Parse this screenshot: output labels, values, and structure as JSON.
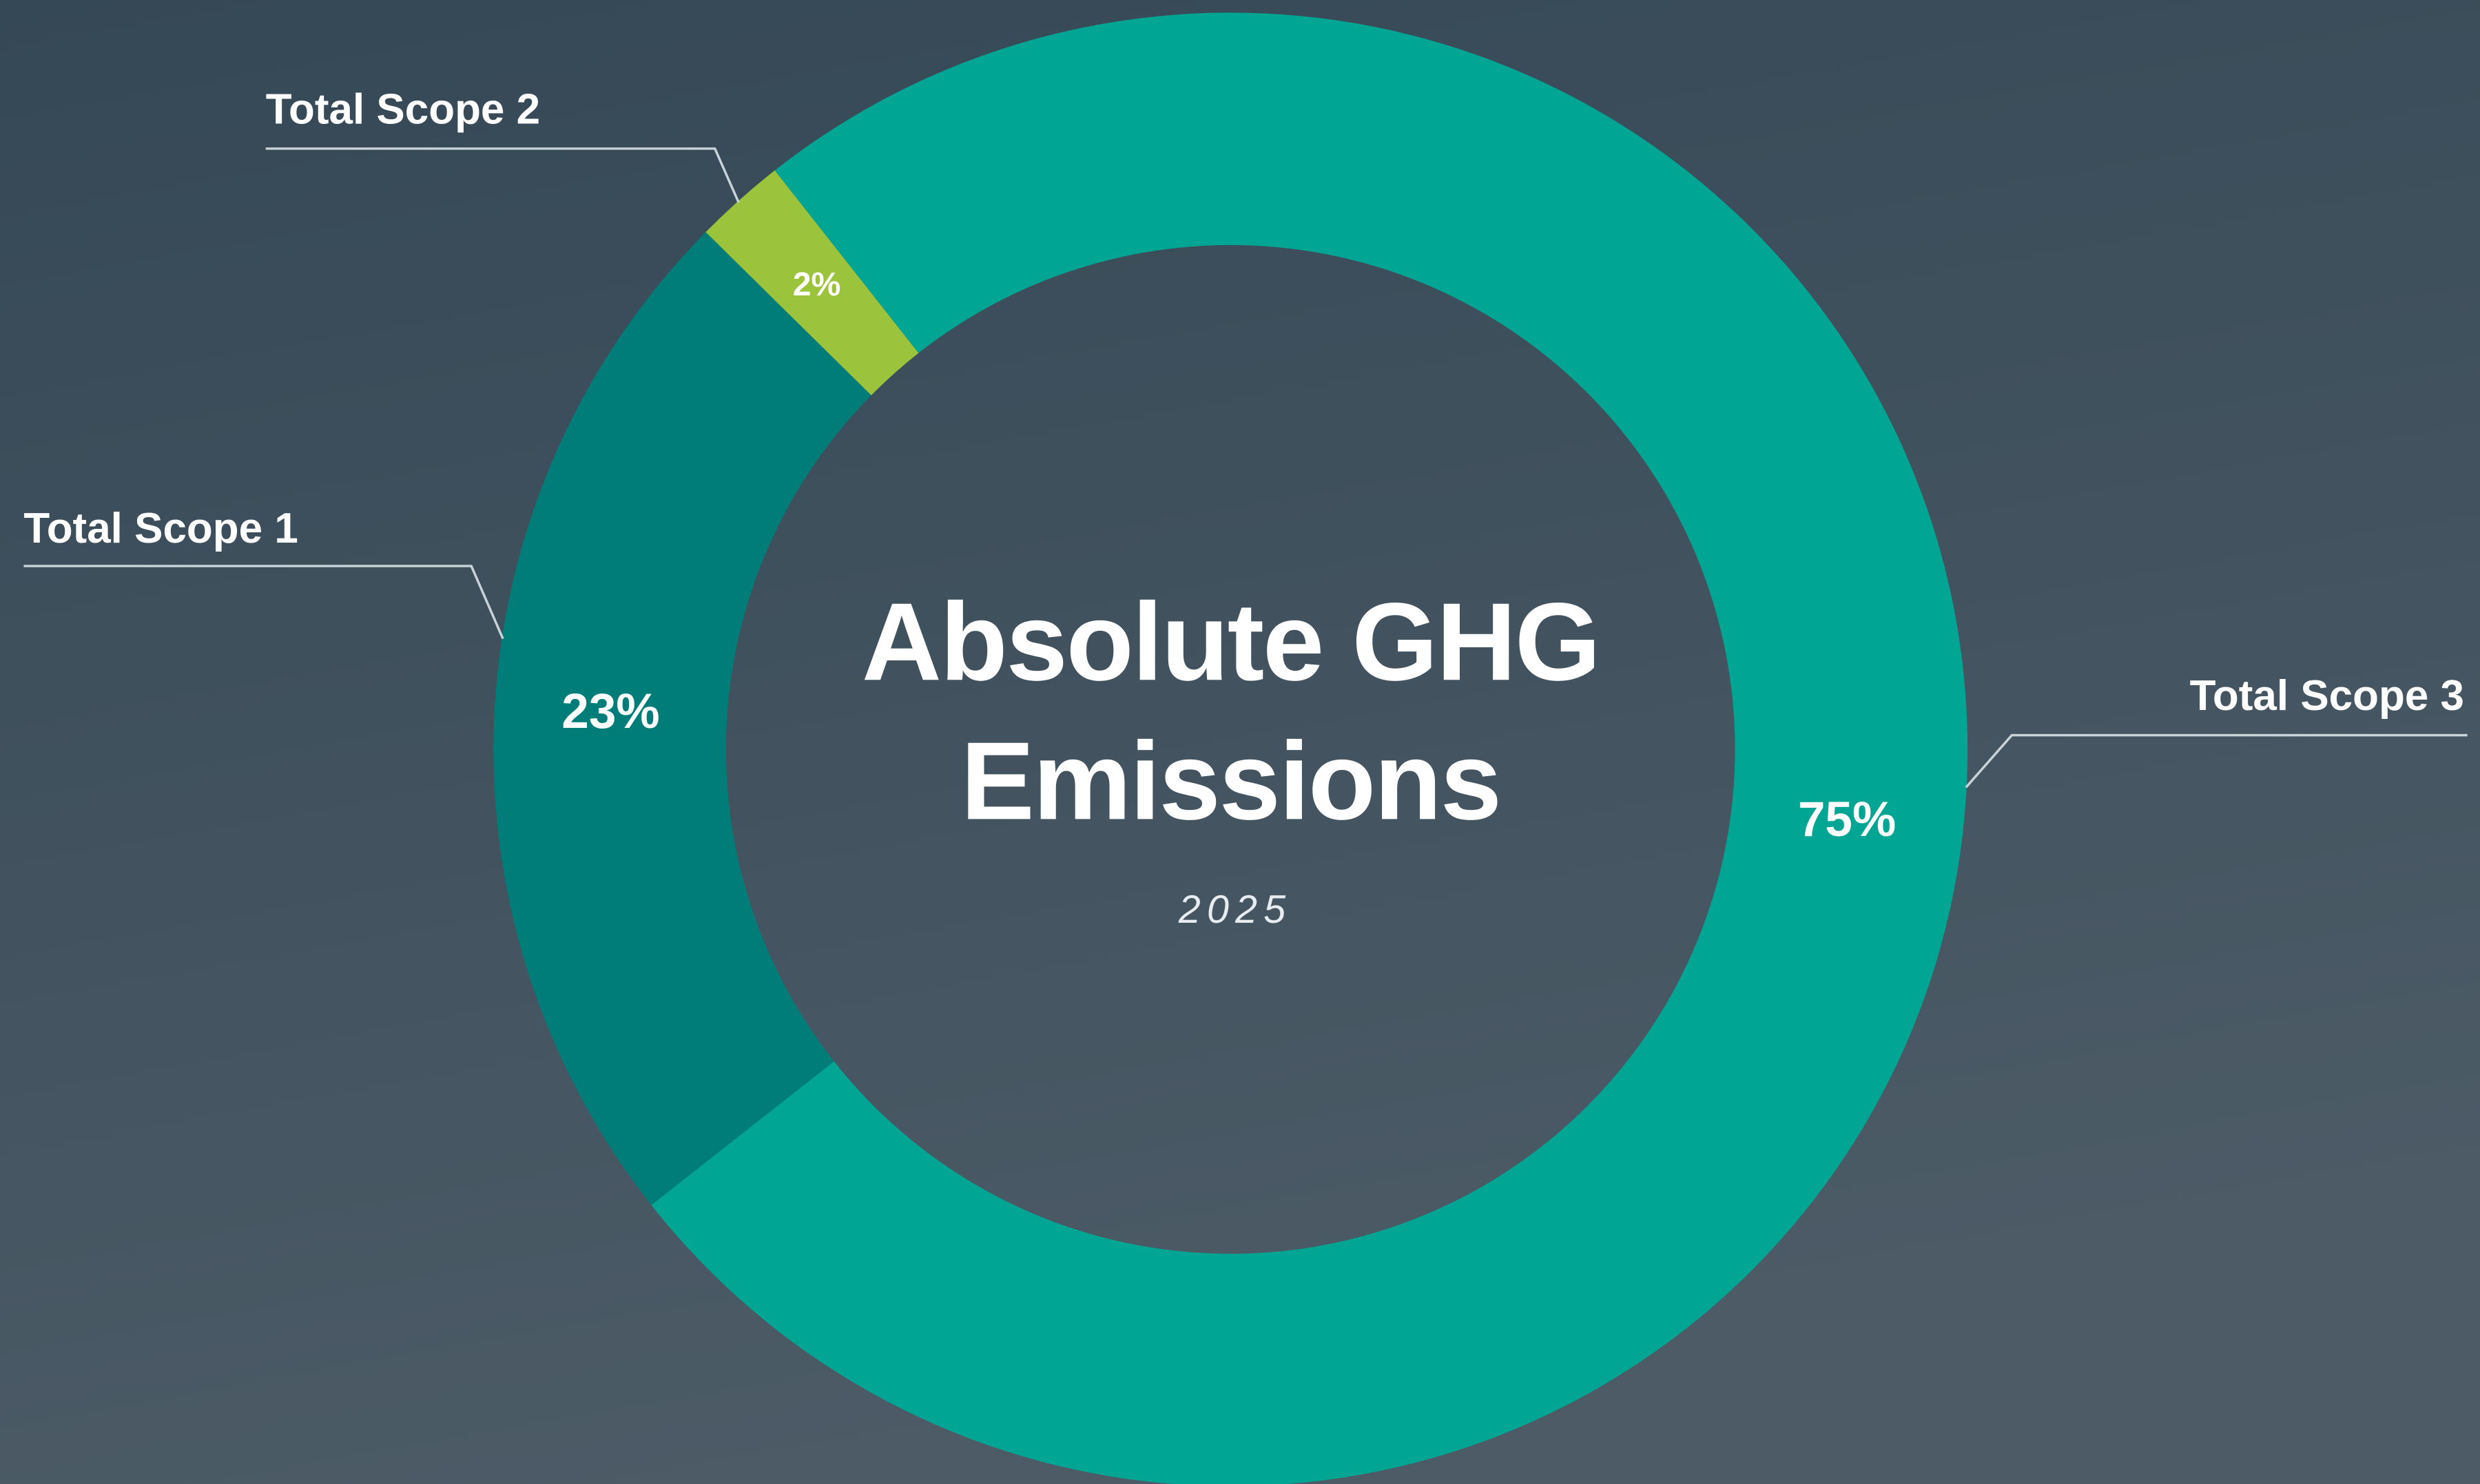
{
  "chart_data": {
    "type": "pie",
    "donut": true,
    "title": "Absolute GHG Emissions",
    "subtitle": "2025",
    "categories": [
      "Total Scope 3",
      "Total Scope 1",
      "Total Scope 2"
    ],
    "values": [
      75,
      23,
      2
    ],
    "value_labels": [
      "75%",
      "23%",
      "2%"
    ],
    "colors": [
      "#00a693",
      "#007d78",
      "#9bc43c"
    ]
  }
}
